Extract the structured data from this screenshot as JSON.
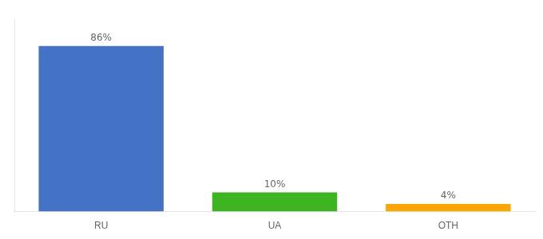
{
  "chart_data": {
    "type": "bar",
    "categories": [
      "RU",
      "UA",
      "OTH"
    ],
    "values": [
      86,
      10,
      4
    ],
    "value_labels": [
      "86%",
      "10%",
      "4%"
    ],
    "colors": [
      "#4472c4",
      "#3cb521",
      "#ffa500"
    ],
    "data_labels": true,
    "ylim": [
      0,
      100
    ],
    "grid": false,
    "tick_labels": "x"
  }
}
